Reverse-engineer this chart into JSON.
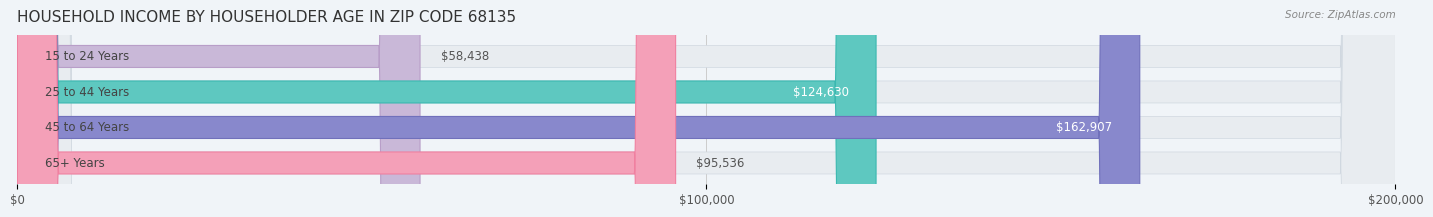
{
  "title": "HOUSEHOLD INCOME BY HOUSEHOLDER AGE IN ZIP CODE 68135",
  "source_text": "Source: ZipAtlas.com",
  "categories": [
    "15 to 24 Years",
    "25 to 44 Years",
    "45 to 64 Years",
    "65+ Years"
  ],
  "values": [
    58438,
    124630,
    162907,
    95536
  ],
  "value_labels": [
    "$58,438",
    "$124,630",
    "$162,907",
    "$95,536"
  ],
  "bar_colors": [
    "#c9b8d8",
    "#5ec8c0",
    "#8888cc",
    "#f4a0b8"
  ],
  "bar_edge_colors": [
    "#b89ec8",
    "#3ab8b0",
    "#7070bb",
    "#f080a0"
  ],
  "bg_color": "#f0f4f8",
  "bar_bg_color": "#e8ecf0",
  "xlim": [
    0,
    200000
  ],
  "xticks": [
    0,
    100000,
    200000
  ],
  "xtick_labels": [
    "$0",
    "$100,000",
    "$200,000"
  ],
  "title_fontsize": 11,
  "label_fontsize": 8.5,
  "value_fontsize": 8.5,
  "bar_height": 0.62
}
